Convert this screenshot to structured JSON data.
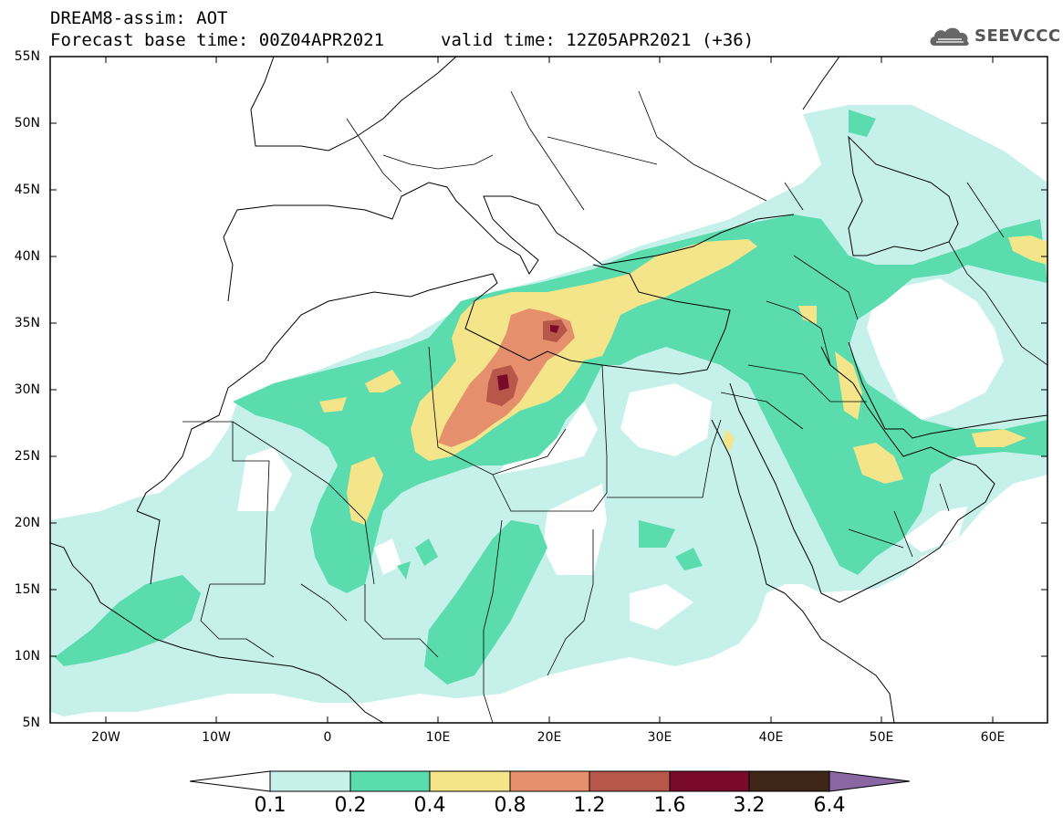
{
  "header": {
    "title_line1": "DREAM8-assim: AOT",
    "base_time": "Forecast base time: 00Z04APR2021",
    "valid_time": "valid time: 12Z05APR2021 (+36)"
  },
  "logo": {
    "text": "SEEVCCC",
    "icon": "cloud-icon"
  },
  "map": {
    "region": "North Africa, Mediterranean, Middle East",
    "projection": "lat-lon",
    "lon_range": [
      -25,
      65
    ],
    "lat_range": [
      5,
      55
    ],
    "lat_labels": [
      "55N",
      "50N",
      "45N",
      "40N",
      "35N",
      "30N",
      "25N",
      "20N",
      "15N",
      "10N",
      "5N"
    ],
    "lon_labels": [
      "20W",
      "10W",
      "0",
      "10E",
      "20E",
      "30E",
      "40E",
      "50E",
      "60E"
    ],
    "variable": "AOT",
    "aot_maximum_region": "Libya / Tunisia"
  },
  "colorbar": {
    "labels": [
      "0.1",
      "0.2",
      "0.4",
      "0.8",
      "1.2",
      "1.6",
      "3.2",
      "6.4"
    ],
    "colors": [
      "#ffffff",
      "#c6f1ea",
      "#5bdcae",
      "#f4e58a",
      "#e58f6c",
      "#b6574a",
      "#7a0a2a",
      "#3e2716",
      "#8a67a3"
    ]
  }
}
